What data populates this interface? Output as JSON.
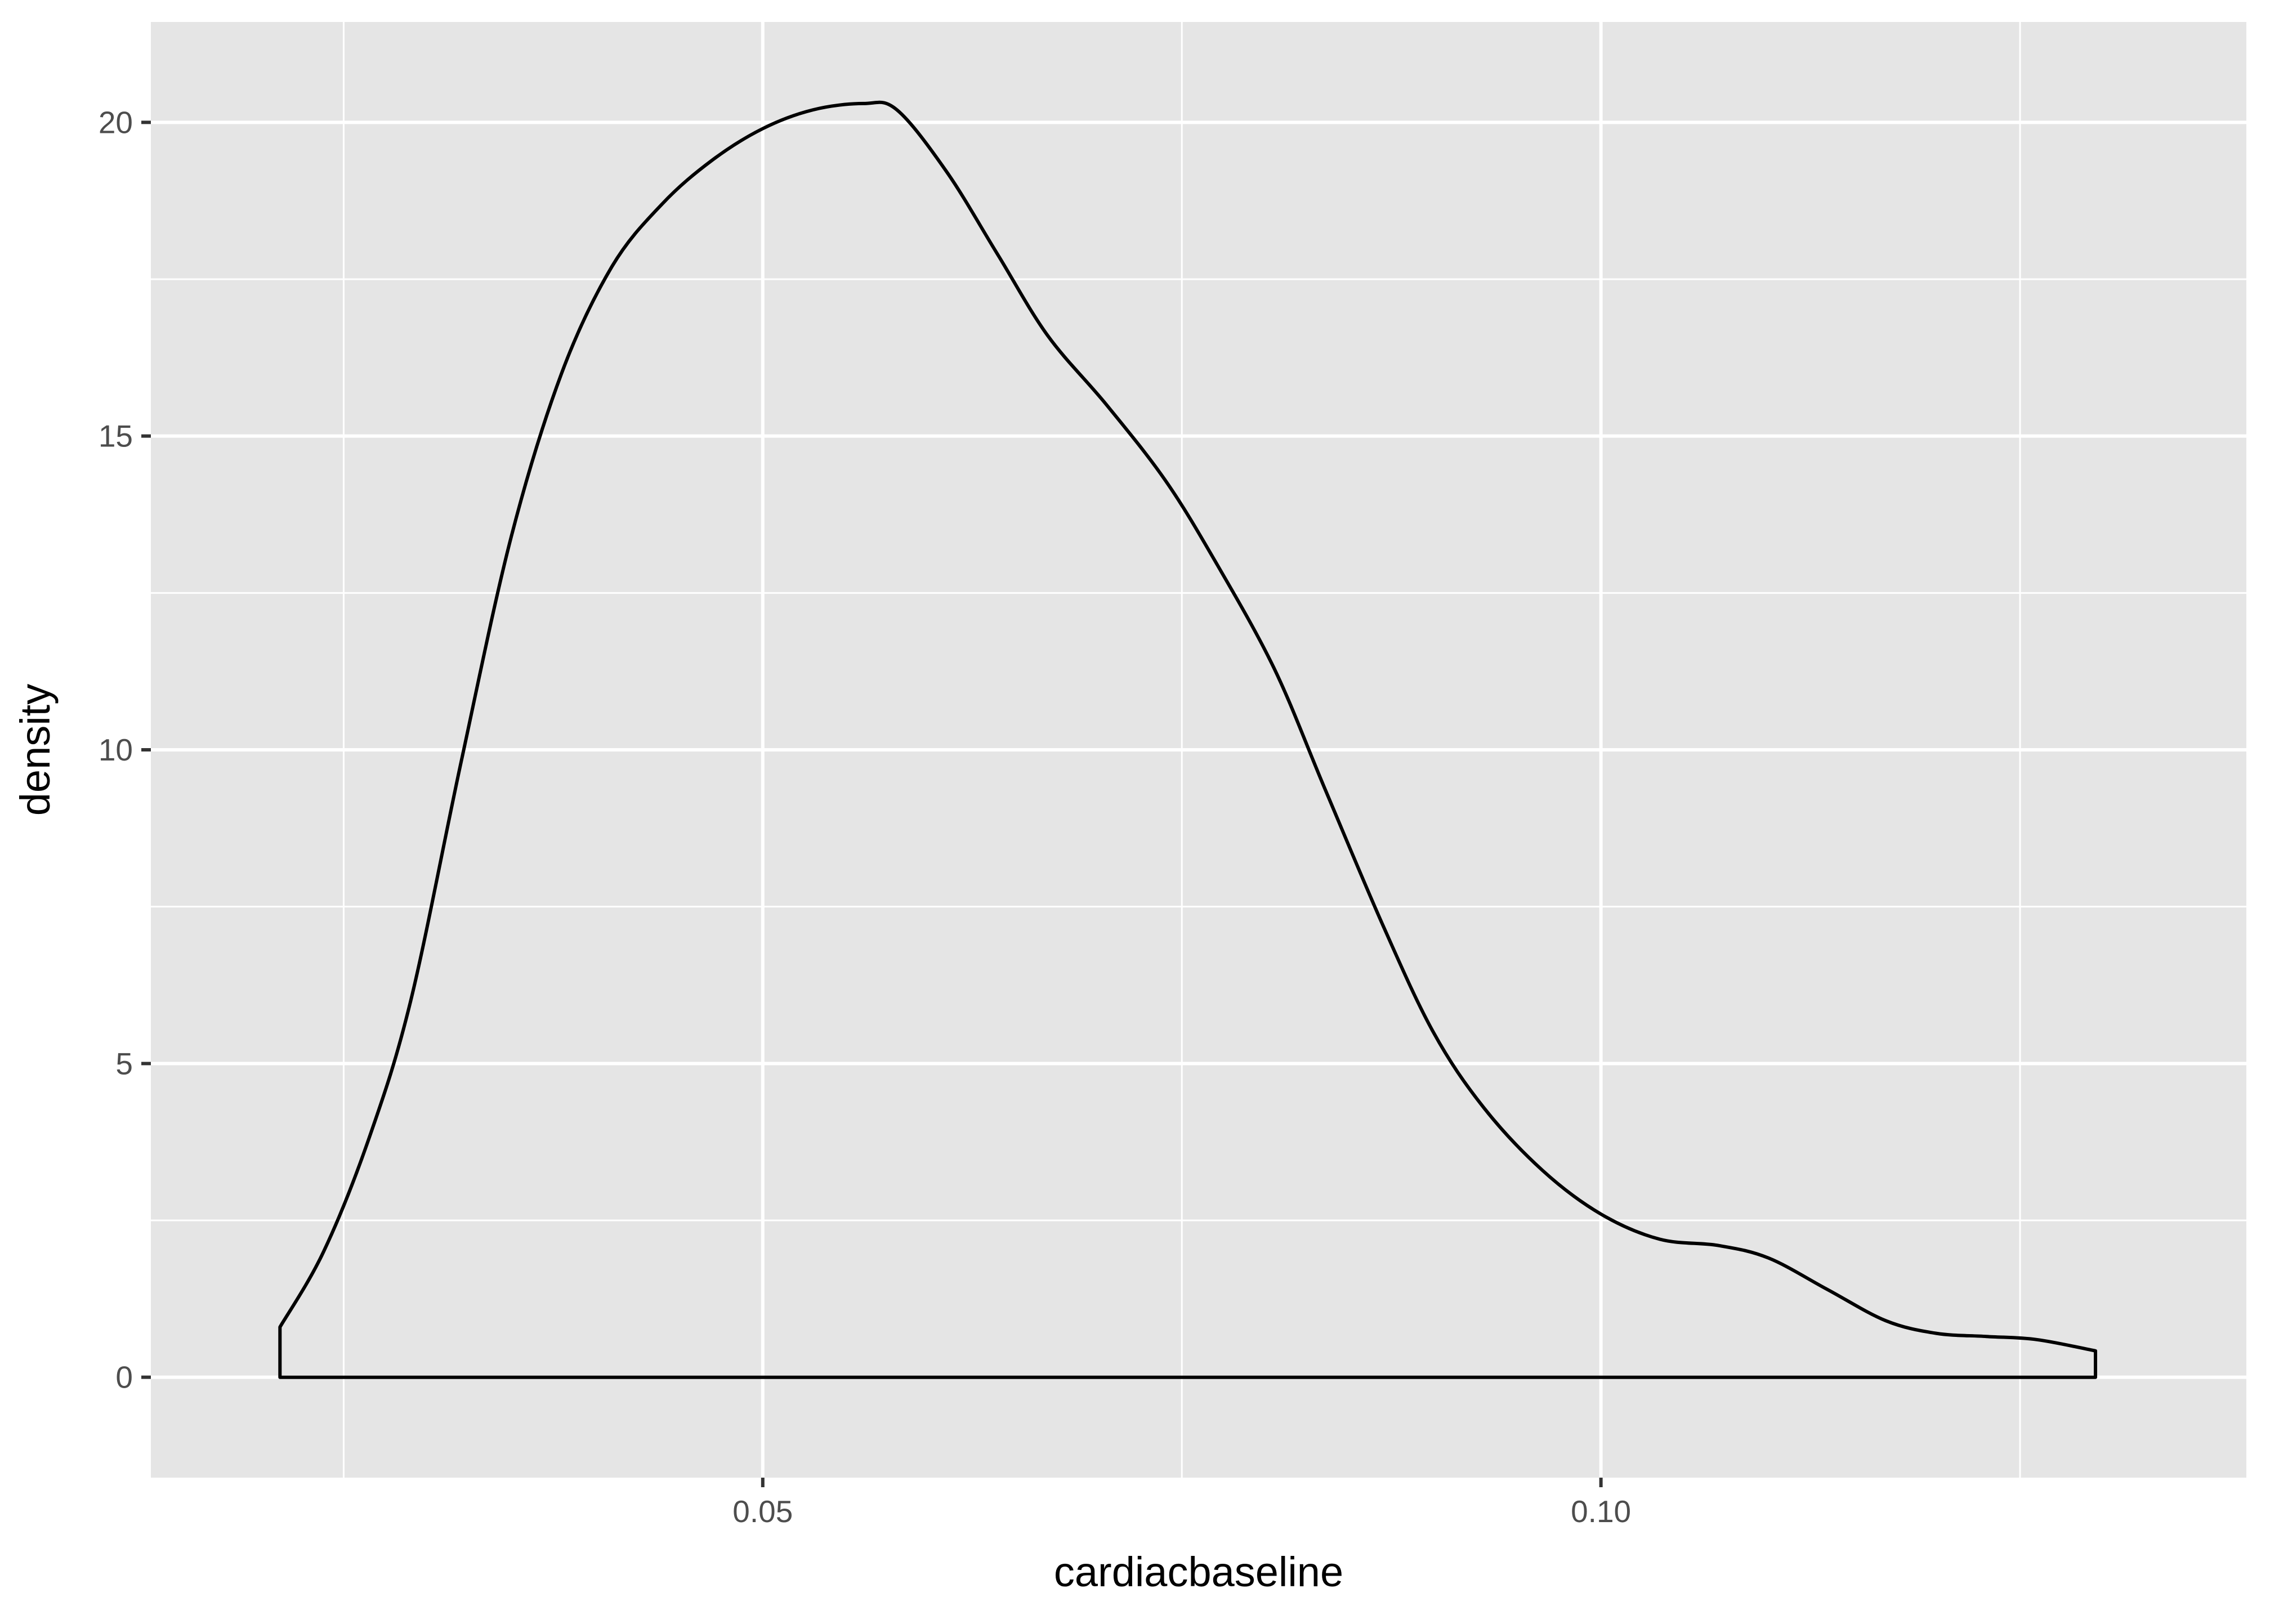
{
  "chart_data": {
    "type": "area",
    "title": "",
    "xlabel": "cardiacbaseline",
    "ylabel": "density",
    "xlim": [
      0.0135,
      0.1385
    ],
    "ylim": [
      -1.6,
      21.6
    ],
    "x_ticks": [
      {
        "value": 0.05,
        "label": "0.05"
      },
      {
        "value": 0.1,
        "label": "0.10"
      }
    ],
    "x_minor_ticks": [
      0.025,
      0.075,
      0.125
    ],
    "y_ticks": [
      {
        "value": 0,
        "label": "0"
      },
      {
        "value": 5,
        "label": "5"
      },
      {
        "value": 10,
        "label": "10"
      },
      {
        "value": 15,
        "label": "15"
      },
      {
        "value": 20,
        "label": "20"
      }
    ],
    "y_minor_ticks": [
      2.5,
      7.5,
      12.5,
      17.5
    ],
    "grid": true,
    "series": [
      {
        "x": [
          0.0212,
          0.0238,
          0.0265,
          0.029,
          0.032,
          0.035,
          0.038,
          0.041,
          0.044,
          0.047,
          0.05,
          0.053,
          0.056,
          0.058,
          0.061,
          0.064,
          0.067,
          0.0705,
          0.074,
          0.077,
          0.0805,
          0.0835,
          0.087,
          0.09,
          0.093,
          0.0965,
          0.1,
          0.1035,
          0.107,
          0.11,
          0.1135,
          0.117,
          0.12,
          0.123,
          0.126,
          0.1295
        ],
        "y": [
          0.8,
          2.0,
          3.8,
          6.0,
          9.8,
          13.4,
          16.0,
          17.7,
          18.7,
          19.4,
          19.9,
          20.2,
          20.3,
          20.2,
          19.2,
          17.9,
          16.6,
          15.5,
          14.3,
          13.0,
          11.3,
          9.4,
          7.2,
          5.5,
          4.3,
          3.3,
          2.6,
          2.2,
          2.1,
          1.9,
          1.4,
          0.9,
          0.7,
          0.65,
          0.6,
          0.42
        ]
      }
    ],
    "colors": {
      "panel_background": "#e5e5e5",
      "grid": "#ffffff",
      "line": "#000000",
      "fill": "none",
      "tick_label": "#4d4d4d",
      "axis_title": "#000000"
    }
  }
}
